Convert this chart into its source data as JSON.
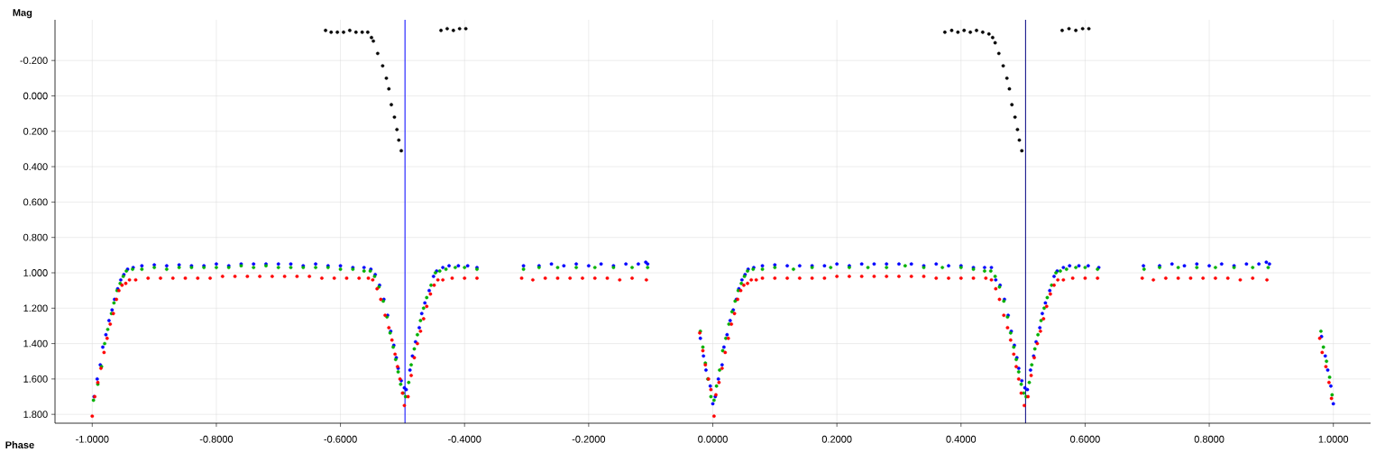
{
  "chart_data": {
    "type": "scatter",
    "xlabel": "Phase",
    "ylabel": "Mag",
    "xlim": [
      -1.06,
      1.06
    ],
    "ylim": [
      1.85,
      -0.43
    ],
    "xticks": [
      {
        "value": -1,
        "label": "-1.0000"
      },
      {
        "value": -0.8,
        "label": "-0.8000"
      },
      {
        "value": -0.6,
        "label": "-0.6000"
      },
      {
        "value": -0.4,
        "label": "-0.4000"
      },
      {
        "value": -0.2,
        "label": "-0.2000"
      },
      {
        "value": 0,
        "label": "0.0000"
      },
      {
        "value": 0.2,
        "label": "0.2000"
      },
      {
        "value": 0.4,
        "label": "0.4000"
      },
      {
        "value": 0.6,
        "label": "0.6000"
      },
      {
        "value": 0.8,
        "label": "0.8000"
      },
      {
        "value": 1,
        "label": "1.0000"
      }
    ],
    "yticks": [
      {
        "value": -0.2,
        "label": "-0.200"
      },
      {
        "value": 0,
        "label": "0.000"
      },
      {
        "value": 0.2,
        "label": "0.200"
      },
      {
        "value": 0.4,
        "label": "0.400"
      },
      {
        "value": 0.6,
        "label": "0.600"
      },
      {
        "value": 0.8,
        "label": "0.800"
      },
      {
        "value": 1,
        "label": "1.000"
      },
      {
        "value": 1.2,
        "label": "1.200"
      },
      {
        "value": 1.4,
        "label": "1.400"
      },
      {
        "value": 1.6,
        "label": "1.600"
      },
      {
        "value": 1.8,
        "label": "1.800"
      }
    ],
    "grid": true,
    "marker": "circle",
    "ref_lines": [
      {
        "axis": "x",
        "value": -0.496,
        "color": "#0000ff"
      },
      {
        "axis": "x",
        "value": 0.504,
        "color": "#000080"
      }
    ],
    "series": [
      {
        "color": "#000000",
        "x": [
          -0.624,
          -0.615,
          -0.605,
          -0.595,
          -0.585,
          -0.575,
          -0.565,
          -0.556,
          -0.55,
          -0.547,
          -0.54,
          -0.532,
          -0.526,
          -0.522,
          -0.518,
          -0.513,
          -0.509,
          -0.506,
          -0.502,
          -0.438,
          -0.428,
          -0.418,
          -0.408,
          -0.398,
          0.374,
          0.385,
          0.395,
          0.405,
          0.415,
          0.425,
          0.435,
          0.445,
          0.451,
          0.455,
          0.461,
          0.468,
          0.474,
          0.478,
          0.482,
          0.487,
          0.491,
          0.494,
          0.498,
          0.563,
          0.574,
          0.585,
          0.596,
          0.606
        ],
        "values": [
          -0.37,
          -0.36,
          -0.36,
          -0.36,
          -0.37,
          -0.36,
          -0.36,
          -0.36,
          -0.33,
          -0.31,
          -0.24,
          -0.17,
          -0.1,
          -0.04,
          0.05,
          0.12,
          0.19,
          0.25,
          0.31,
          -0.37,
          -0.38,
          -0.37,
          -0.38,
          -0.38,
          -0.36,
          -0.37,
          -0.36,
          -0.37,
          -0.36,
          -0.37,
          -0.36,
          -0.35,
          -0.33,
          -0.3,
          -0.24,
          -0.17,
          -0.1,
          -0.04,
          0.05,
          0.12,
          0.19,
          0.25,
          0.31,
          -0.37,
          -0.38,
          -0.37,
          -0.38,
          -0.38
        ]
      },
      {
        "color": "#0000ff",
        "x": [
          -0.997,
          -0.992,
          -0.987,
          -0.983,
          -0.978,
          -0.973,
          -0.968,
          -0.964,
          -0.959,
          -0.954,
          -0.949,
          -0.943,
          -0.934,
          -0.92,
          -0.9,
          -0.88,
          -0.86,
          -0.84,
          -0.82,
          -0.8,
          -0.78,
          -0.76,
          -0.74,
          -0.72,
          -0.7,
          -0.68,
          -0.66,
          -0.64,
          -0.62,
          -0.6,
          -0.58,
          -0.562,
          -0.551,
          -0.544,
          -0.537,
          -0.53,
          -0.524,
          -0.519,
          -0.514,
          -0.51,
          -0.507,
          -0.502,
          -0.497,
          -0.494,
          -0.488,
          -0.484,
          -0.479,
          -0.473,
          -0.469,
          -0.464,
          -0.457,
          -0.45,
          -0.445,
          -0.435,
          -0.425,
          -0.41,
          -0.395,
          -0.38,
          -0.305,
          -0.28,
          -0.26,
          -0.24,
          -0.22,
          -0.2,
          -0.18,
          -0.16,
          -0.14,
          -0.12,
          -0.108,
          -0.105,
          -0.02,
          -0.015,
          -0.011,
          -0.004,
          0,
          0.004,
          0.009,
          0.015,
          0.018,
          0.023,
          0.028,
          0.033,
          0.038,
          0.042,
          0.047,
          0.052,
          0.057,
          0.066,
          0.08,
          0.1,
          0.12,
          0.14,
          0.16,
          0.18,
          0.2,
          0.22,
          0.24,
          0.26,
          0.28,
          0.3,
          0.32,
          0.34,
          0.36,
          0.38,
          0.4,
          0.42,
          0.438,
          0.449,
          0.456,
          0.463,
          0.47,
          0.476,
          0.481,
          0.486,
          0.49,
          0.493,
          0.498,
          0.503,
          0.507,
          0.512,
          0.517,
          0.521,
          0.527,
          0.531,
          0.536,
          0.543,
          0.55,
          0.555,
          0.565,
          0.575,
          0.59,
          0.605,
          0.622,
          0.694,
          0.72,
          0.74,
          0.76,
          0.78,
          0.8,
          0.82,
          0.84,
          0.86,
          0.88,
          0.892,
          0.897,
          0.981,
          0.987,
          0.991,
          0.996,
          1.0
        ],
        "values": [
          1.7,
          1.6,
          1.52,
          1.42,
          1.35,
          1.27,
          1.21,
          1.15,
          1.09,
          1.04,
          1.01,
          0.98,
          0.97,
          0.96,
          0.955,
          0.96,
          0.955,
          0.96,
          0.96,
          0.95,
          0.96,
          0.95,
          0.95,
          0.95,
          0.95,
          0.95,
          0.96,
          0.95,
          0.96,
          0.96,
          0.97,
          0.97,
          0.98,
          1.01,
          1.07,
          1.15,
          1.24,
          1.33,
          1.41,
          1.48,
          1.54,
          1.61,
          1.65,
          1.66,
          1.55,
          1.47,
          1.39,
          1.31,
          1.23,
          1.17,
          1.1,
          1.02,
          0.99,
          0.97,
          0.96,
          0.96,
          0.96,
          0.97,
          0.96,
          0.96,
          0.95,
          0.96,
          0.95,
          0.96,
          0.95,
          0.96,
          0.95,
          0.95,
          0.94,
          0.95,
          1.37,
          1.47,
          1.55,
          1.64,
          1.74,
          1.7,
          1.6,
          1.52,
          1.42,
          1.35,
          1.27,
          1.21,
          1.15,
          1.09,
          1.04,
          1.01,
          0.98,
          0.97,
          0.96,
          0.955,
          0.96,
          0.96,
          0.96,
          0.96,
          0.95,
          0.96,
          0.95,
          0.95,
          0.95,
          0.95,
          0.95,
          0.96,
          0.95,
          0.96,
          0.96,
          0.97,
          0.97,
          0.97,
          1.04,
          1.07,
          1.15,
          1.24,
          1.33,
          1.41,
          1.48,
          1.54,
          1.61,
          1.65,
          1.66,
          1.55,
          1.47,
          1.39,
          1.31,
          1.23,
          1.17,
          1.1,
          1.02,
          0.99,
          0.97,
          0.96,
          0.96,
          0.96,
          0.97,
          0.96,
          0.96,
          0.95,
          0.96,
          0.95,
          0.96,
          0.95,
          0.96,
          0.95,
          0.95,
          0.94,
          0.95,
          1.36,
          1.47,
          1.55,
          1.64,
          1.74
        ]
      },
      {
        "color": "#00b000",
        "x": [
          -0.998,
          -0.991,
          -0.985,
          -0.98,
          -0.975,
          -0.969,
          -0.965,
          -0.96,
          -0.955,
          -0.95,
          -0.945,
          -0.935,
          -0.92,
          -0.9,
          -0.88,
          -0.86,
          -0.84,
          -0.82,
          -0.8,
          -0.78,
          -0.76,
          -0.74,
          -0.72,
          -0.7,
          -0.68,
          -0.66,
          -0.64,
          -0.62,
          -0.6,
          -0.58,
          -0.562,
          -0.552,
          -0.545,
          -0.538,
          -0.531,
          -0.525,
          -0.52,
          -0.515,
          -0.511,
          -0.507,
          -0.503,
          -0.499,
          -0.495,
          -0.49,
          -0.486,
          -0.481,
          -0.476,
          -0.471,
          -0.466,
          -0.461,
          -0.454,
          -0.447,
          -0.44,
          -0.43,
          -0.415,
          -0.4,
          -0.38,
          -0.305,
          -0.28,
          -0.25,
          -0.22,
          -0.19,
          -0.16,
          -0.13,
          -0.105,
          -0.02,
          -0.016,
          -0.012,
          -0.008,
          -0.003,
          0.002,
          0.006,
          0.011,
          0.016,
          0.021,
          0.026,
          0.031,
          0.036,
          0.041,
          0.046,
          0.051,
          0.056,
          0.065,
          0.08,
          0.1,
          0.13,
          0.16,
          0.19,
          0.22,
          0.25,
          0.28,
          0.31,
          0.34,
          0.37,
          0.4,
          0.42,
          0.438,
          0.448,
          0.455,
          0.462,
          0.469,
          0.475,
          0.48,
          0.485,
          0.489,
          0.493,
          0.497,
          0.501,
          0.505,
          0.51,
          0.514,
          0.519,
          0.524,
          0.529,
          0.534,
          0.539,
          0.546,
          0.553,
          0.56,
          0.57,
          0.585,
          0.6,
          0.62,
          0.695,
          0.72,
          0.75,
          0.78,
          0.81,
          0.84,
          0.87,
          0.895,
          0.98,
          0.984,
          0.989,
          0.994,
          0.998
        ],
        "values": [
          1.72,
          1.63,
          1.53,
          1.4,
          1.32,
          1.23,
          1.17,
          1.1,
          1.06,
          1.02,
          0.99,
          0.98,
          0.98,
          0.97,
          0.98,
          0.97,
          0.97,
          0.97,
          0.97,
          0.97,
          0.96,
          0.97,
          0.96,
          0.97,
          0.97,
          0.97,
          0.97,
          0.97,
          0.98,
          0.98,
          0.99,
          0.99,
          1.02,
          1.08,
          1.16,
          1.25,
          1.34,
          1.42,
          1.49,
          1.56,
          1.63,
          1.68,
          1.7,
          1.62,
          1.52,
          1.43,
          1.35,
          1.27,
          1.2,
          1.14,
          1.07,
          1,
          0.99,
          0.98,
          0.97,
          0.97,
          0.98,
          0.98,
          0.97,
          0.97,
          0.97,
          0.97,
          0.97,
          0.97,
          0.97,
          1.33,
          1.42,
          1.51,
          1.6,
          1.7,
          1.72,
          1.64,
          1.55,
          1.44,
          1.37,
          1.29,
          1.22,
          1.16,
          1.1,
          1.06,
          1.02,
          0.99,
          0.98,
          0.98,
          0.97,
          0.98,
          0.97,
          0.97,
          0.97,
          0.97,
          0.97,
          0.96,
          0.97,
          0.97,
          0.97,
          0.98,
          0.99,
          0.99,
          1.02,
          1.08,
          1.16,
          1.25,
          1.34,
          1.42,
          1.49,
          1.56,
          1.63,
          1.68,
          1.7,
          1.62,
          1.52,
          1.43,
          1.35,
          1.27,
          1.2,
          1.14,
          1.07,
          1,
          0.99,
          0.98,
          0.97,
          0.97,
          0.98,
          0.98,
          0.97,
          0.97,
          0.97,
          0.97,
          0.97,
          0.97,
          0.97,
          1.33,
          1.42,
          1.5,
          1.59,
          1.69
        ]
      },
      {
        "color": "#ff0000",
        "x": [
          -1.0,
          -0.996,
          -0.991,
          -0.986,
          -0.981,
          -0.976,
          -0.971,
          -0.966,
          -0.961,
          -0.957,
          -0.952,
          -0.946,
          -0.94,
          -0.93,
          -0.91,
          -0.89,
          -0.87,
          -0.85,
          -0.83,
          -0.81,
          -0.79,
          -0.77,
          -0.75,
          -0.73,
          -0.71,
          -0.69,
          -0.67,
          -0.65,
          -0.63,
          -0.61,
          -0.59,
          -0.57,
          -0.555,
          -0.548,
          -0.541,
          -0.535,
          -0.528,
          -0.522,
          -0.517,
          -0.512,
          -0.508,
          -0.504,
          -0.5,
          -0.497,
          -0.491,
          -0.486,
          -0.481,
          -0.476,
          -0.471,
          -0.466,
          -0.461,
          -0.455,
          -0.449,
          -0.443,
          -0.435,
          -0.42,
          -0.4,
          -0.38,
          -0.308,
          -0.29,
          -0.27,
          -0.25,
          -0.23,
          -0.21,
          -0.19,
          -0.17,
          -0.15,
          -0.13,
          -0.107,
          -0.021,
          -0.016,
          -0.012,
          -0.007,
          -0.003,
          0.002,
          0.005,
          0.01,
          0.015,
          0.02,
          0.025,
          0.03,
          0.035,
          0.04,
          0.045,
          0.05,
          0.056,
          0.062,
          0.07,
          0.08,
          0.1,
          0.12,
          0.14,
          0.16,
          0.18,
          0.2,
          0.22,
          0.24,
          0.26,
          0.28,
          0.3,
          0.32,
          0.34,
          0.36,
          0.38,
          0.4,
          0.42,
          0.44,
          0.449,
          0.456,
          0.462,
          0.469,
          0.475,
          0.48,
          0.485,
          0.489,
          0.493,
          0.497,
          0.502,
          0.508,
          0.513,
          0.518,
          0.523,
          0.528,
          0.533,
          0.538,
          0.544,
          0.55,
          0.556,
          0.565,
          0.58,
          0.6,
          0.62,
          0.692,
          0.71,
          0.73,
          0.75,
          0.77,
          0.79,
          0.81,
          0.83,
          0.85,
          0.87,
          0.893,
          0.978,
          0.982,
          0.988,
          0.993,
          0.997
        ],
        "values": [
          1.81,
          1.7,
          1.62,
          1.54,
          1.45,
          1.37,
          1.29,
          1.23,
          1.15,
          1.1,
          1.07,
          1.06,
          1.04,
          1.04,
          1.03,
          1.03,
          1.03,
          1.03,
          1.03,
          1.03,
          1.02,
          1.02,
          1.02,
          1.02,
          1.02,
          1.02,
          1.02,
          1.02,
          1.03,
          1.03,
          1.03,
          1.03,
          1.03,
          1.04,
          1.09,
          1.15,
          1.24,
          1.31,
          1.38,
          1.46,
          1.53,
          1.6,
          1.68,
          1.75,
          1.7,
          1.58,
          1.48,
          1.4,
          1.33,
          1.26,
          1.19,
          1.12,
          1.07,
          1.04,
          1.04,
          1.03,
          1.03,
          1.03,
          1.03,
          1.04,
          1.03,
          1.03,
          1.03,
          1.03,
          1.03,
          1.03,
          1.04,
          1.03,
          1.04,
          1.34,
          1.44,
          1.52,
          1.6,
          1.66,
          1.81,
          1.69,
          1.62,
          1.54,
          1.45,
          1.37,
          1.29,
          1.23,
          1.15,
          1.1,
          1.07,
          1.06,
          1.04,
          1.04,
          1.03,
          1.03,
          1.03,
          1.03,
          1.03,
          1.03,
          1.02,
          1.02,
          1.02,
          1.02,
          1.02,
          1.02,
          1.02,
          1.02,
          1.03,
          1.03,
          1.03,
          1.03,
          1.03,
          1.04,
          1.09,
          1.15,
          1.24,
          1.31,
          1.38,
          1.46,
          1.53,
          1.6,
          1.68,
          1.75,
          1.7,
          1.58,
          1.48,
          1.4,
          1.33,
          1.26,
          1.19,
          1.12,
          1.07,
          1.04,
          1.04,
          1.03,
          1.03,
          1.03,
          1.03,
          1.04,
          1.03,
          1.03,
          1.03,
          1.03,
          1.03,
          1.03,
          1.04,
          1.03,
          1.04,
          1.37,
          1.45,
          1.53,
          1.62,
          1.71
        ]
      }
    ]
  }
}
